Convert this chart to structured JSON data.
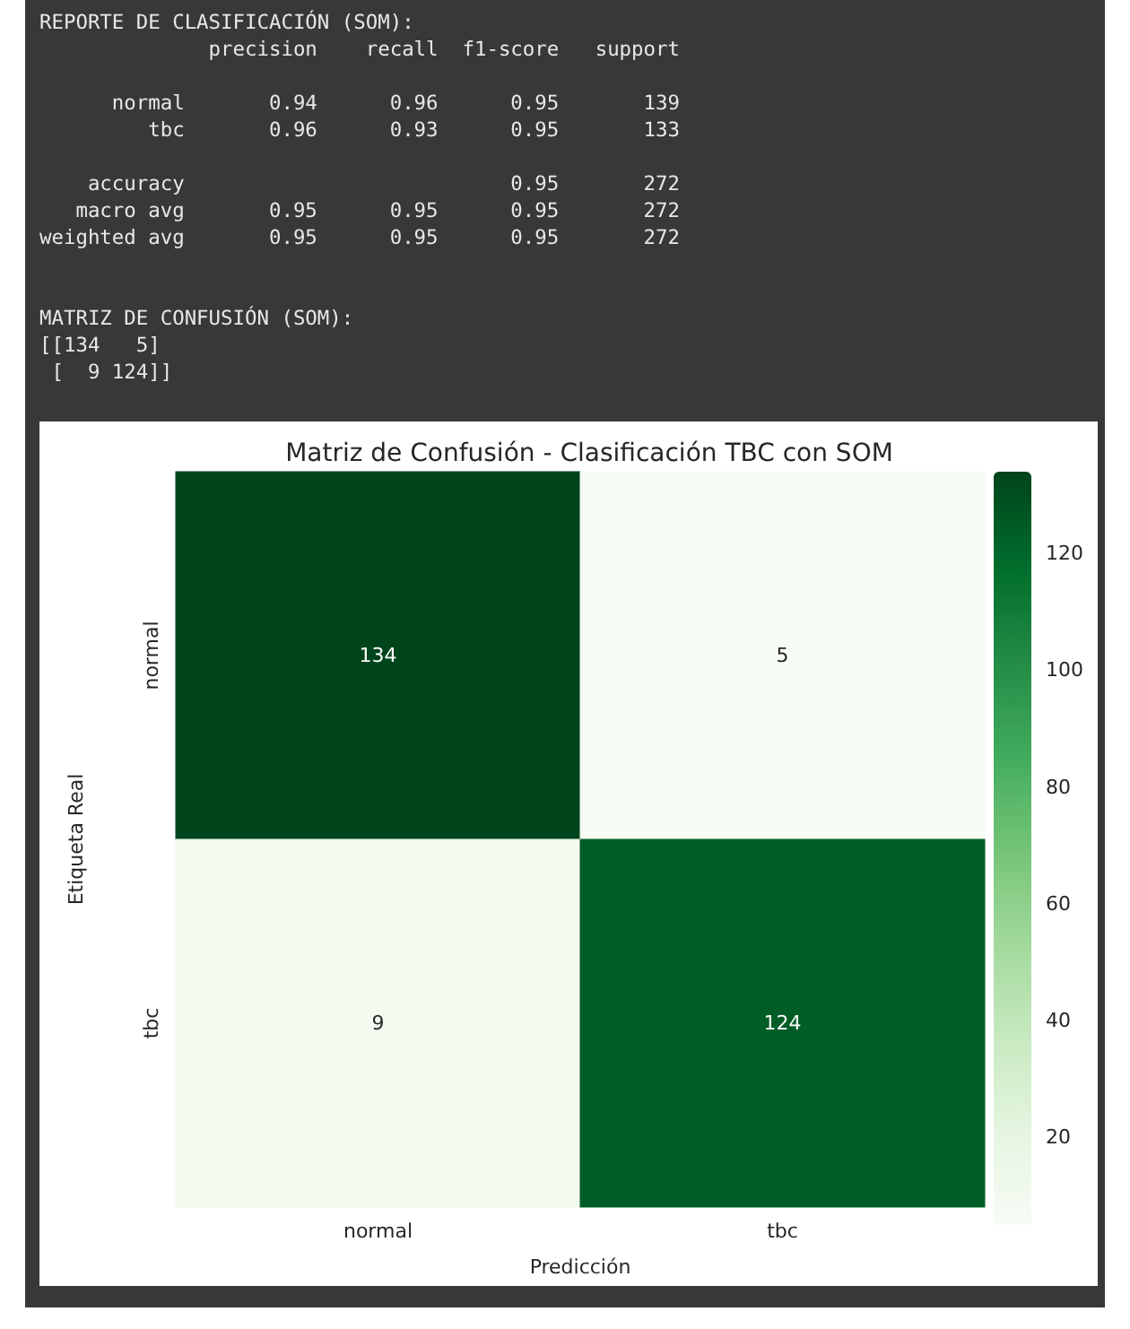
{
  "chart_data": [
    {
      "type": "other",
      "annotations": [
        "REPORTE DE CLASIFICACIÓN (SOM):\n              precision    recall  f1-score   support",
        "      normal       0.94      0.96      0.95       139\n         tbc       0.96      0.93      0.95       133",
        "    accuracy                           0.95       272\n   macro avg       0.95      0.95      0.95       272\nweighted avg       0.95      0.95      0.95       272",
        "\nMATRIZ DE CONFUSIÓN (SOM):\n[[134   5]\n [  9 124]]"
      ]
    },
    {
      "type": "heatmap",
      "title": "Matriz de Confusión - Clasificación TBC con SOM",
      "xlabel": "Predicción",
      "ylabel": "Etiqueta Real",
      "categories": [
        "normal",
        "tbc"
      ],
      "y_categories": [
        "normal",
        "tbc"
      ],
      "cells": [
        [
          134,
          5
        ],
        [
          9,
          124
        ]
      ],
      "clim": [
        5,
        134
      ],
      "cticks": [
        20,
        40,
        60,
        80,
        100,
        120
      ],
      "data_labels": true
    }
  ]
}
